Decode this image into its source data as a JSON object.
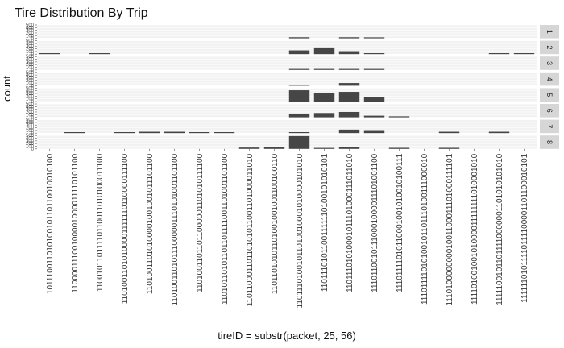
{
  "chart_data": {
    "type": "bar",
    "title": "Tire Distribution By Trip",
    "xlabel": "tireID = substr(packet, 25, 56)",
    "ylabel": "count",
    "ylim": [
      0,
      500
    ],
    "yticks": [
      "0",
      "100",
      "200",
      "300",
      "400",
      "500"
    ],
    "facet_labels": [
      "1",
      "2",
      "3",
      "4",
      "5",
      "6",
      "7",
      "8"
    ],
    "categories": [
      "10111001101010010110110010010100",
      "11000011100100001000011110101100",
      "11001011011110110011010100011100",
      "11010011010100001111110110000111100",
      "11010011010100001001001011101100",
      "11010011010111000001110101001101100",
      "11010011011011000001101010111100",
      "11010110101101101111001101001101100",
      "11011000110110101011001101000011010",
      "11011010101101001001001100100110",
      "11011101001011010010001010000101010",
      "11011101011001111110100101010101",
      "11011101010001011101000111011010",
      "11101100101110001000011101001100",
      "11101111010110001001010010100111",
      "11101111010100101101110100111000010",
      "11101000000001001100011101000111101",
      "11110100100101000011111111010001010",
      "11111001011011110000001101010101010",
      "11111101011110111100001101100010101"
    ],
    "series": [
      {
        "facet": "1",
        "values": [
          0,
          0,
          0,
          0,
          0,
          0,
          0,
          0,
          0,
          0,
          40,
          0,
          40,
          30,
          0,
          0,
          0,
          0,
          0,
          0
        ]
      },
      {
        "facet": "2",
        "values": [
          15,
          0,
          15,
          0,
          0,
          0,
          0,
          0,
          0,
          0,
          140,
          250,
          110,
          20,
          0,
          0,
          0,
          0,
          15,
          15
        ]
      },
      {
        "facet": "3",
        "values": [
          0,
          0,
          0,
          0,
          0,
          0,
          0,
          0,
          0,
          0,
          20,
          20,
          20,
          20,
          0,
          0,
          0,
          0,
          0,
          0
        ]
      },
      {
        "facet": "4",
        "values": [
          0,
          0,
          0,
          0,
          0,
          0,
          0,
          0,
          0,
          0,
          40,
          0,
          100,
          0,
          0,
          0,
          0,
          0,
          0,
          0
        ]
      },
      {
        "facet": "5",
        "values": [
          0,
          0,
          0,
          0,
          0,
          0,
          0,
          0,
          0,
          0,
          420,
          320,
          360,
          160,
          0,
          0,
          0,
          0,
          0,
          0
        ]
      },
      {
        "facet": "6",
        "values": [
          0,
          0,
          0,
          0,
          0,
          0,
          0,
          0,
          0,
          0,
          140,
          160,
          200,
          60,
          20,
          0,
          0,
          0,
          0,
          0
        ]
      },
      {
        "facet": "7",
        "values": [
          0,
          25,
          0,
          25,
          50,
          50,
          25,
          25,
          0,
          0,
          25,
          0,
          130,
          110,
          0,
          0,
          50,
          0,
          50,
          0
        ]
      },
      {
        "facet": "8",
        "values": [
          0,
          0,
          0,
          0,
          0,
          0,
          0,
          0,
          50,
          60,
          480,
          20,
          80,
          0,
          40,
          0,
          40,
          0,
          0,
          0
        ]
      }
    ],
    "bar_color": "#464646",
    "panel_color": "#f2f2f2",
    "strip_color": "#d6d6d6",
    "grid": true
  }
}
